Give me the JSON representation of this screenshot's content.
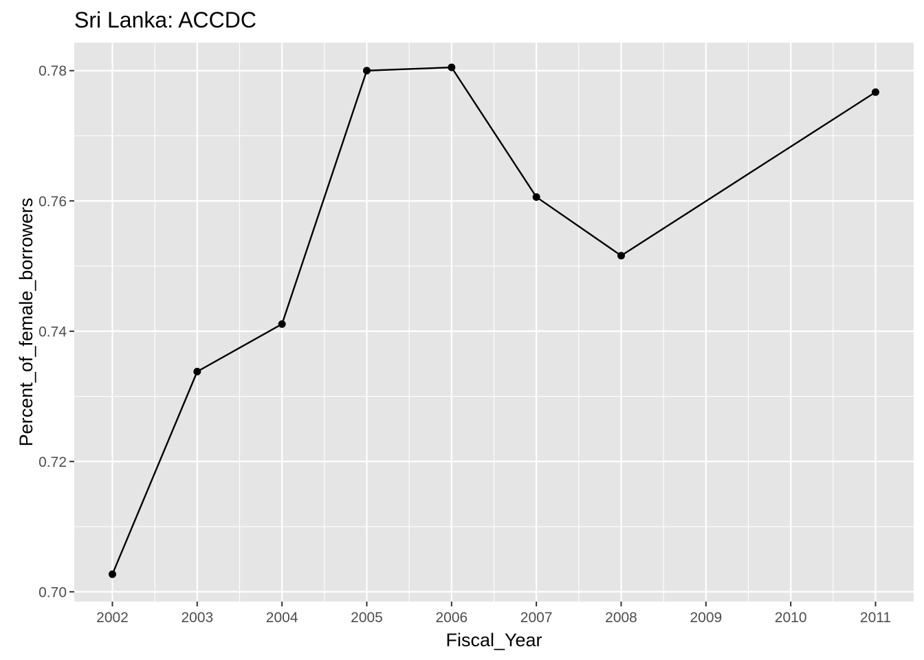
{
  "chart_data": {
    "type": "line",
    "title": "Sri Lanka:  ACCDC",
    "xlabel": "Fiscal_Year",
    "ylabel": "Percent_of_female_borrowers",
    "xlim": [
      2001.55,
      2011.45
    ],
    "ylim": [
      0.6985,
      0.7843
    ],
    "x_ticks": [
      2002,
      2003,
      2004,
      2005,
      2006,
      2007,
      2008,
      2009,
      2010,
      2011
    ],
    "y_ticks": [
      0.7,
      0.72,
      0.74,
      0.76,
      0.78
    ],
    "y_tick_labels": [
      "0.70",
      "0.72",
      "0.74",
      "0.76",
      "0.78"
    ],
    "grid": true,
    "legend": "none",
    "series": [
      {
        "x": [
          2002,
          2003,
          2004,
          2005,
          2006,
          2007,
          2008,
          2011
        ],
        "values": [
          0.7027,
          0.7338,
          0.7411,
          0.78,
          0.7805,
          0.7606,
          0.7516,
          0.7767
        ],
        "color": "#000000"
      }
    ]
  },
  "colors": {
    "panel_background": "#e5e5e5",
    "grid_line": "#ffffff",
    "tick_text": "#4d4d4d",
    "tick_mark": "#333333",
    "series": "#000000"
  }
}
